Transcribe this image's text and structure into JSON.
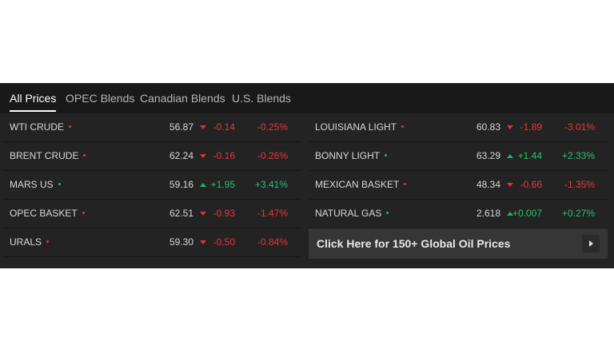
{
  "tabs": [
    {
      "label": "All Prices",
      "active": true
    },
    {
      "label": "OPEC Blends",
      "active": false
    },
    {
      "label": "Canadian Blends",
      "active": false
    },
    {
      "label": "U.S. Blends",
      "active": false
    }
  ],
  "colors": {
    "up": "#27c073",
    "down": "#e6363e",
    "background": "#232323"
  },
  "left_rows": [
    {
      "name": "WTI CRUDE",
      "price": "56.87",
      "change": "-0.14",
      "pct": "-0.25%",
      "direction": "down"
    },
    {
      "name": "BRENT CRUDE",
      "price": "62.24",
      "change": "-0.16",
      "pct": "-0.26%",
      "direction": "down"
    },
    {
      "name": "MARS US",
      "price": "59.16",
      "change": "+1.95",
      "pct": "+3.41%",
      "direction": "up"
    },
    {
      "name": "OPEC BASKET",
      "price": "62.51",
      "change": "-0.93",
      "pct": "-1.47%",
      "direction": "down"
    },
    {
      "name": "URALS",
      "price": "59.30",
      "change": "-0.50",
      "pct": "-0.84%",
      "direction": "down"
    }
  ],
  "right_rows": [
    {
      "name": "LOUISIANA LIGHT",
      "price": "60.83",
      "change": "-1.89",
      "pct": "-3.01%",
      "direction": "down"
    },
    {
      "name": "BONNY LIGHT",
      "price": "63.29",
      "change": "+1.44",
      "pct": "+2.33%",
      "direction": "up"
    },
    {
      "name": "MEXICAN BASKET",
      "price": "48.34",
      "change": "-0.66",
      "pct": "-1.35%",
      "direction": "down"
    },
    {
      "name": "NATURAL GAS",
      "price": "2.618",
      "change": "+0.007",
      "pct": "+0.27%",
      "direction": "up"
    }
  ],
  "cta": {
    "label": "Click Here for 150+ Global Oil Prices",
    "icon": "play-arrow-icon"
  }
}
